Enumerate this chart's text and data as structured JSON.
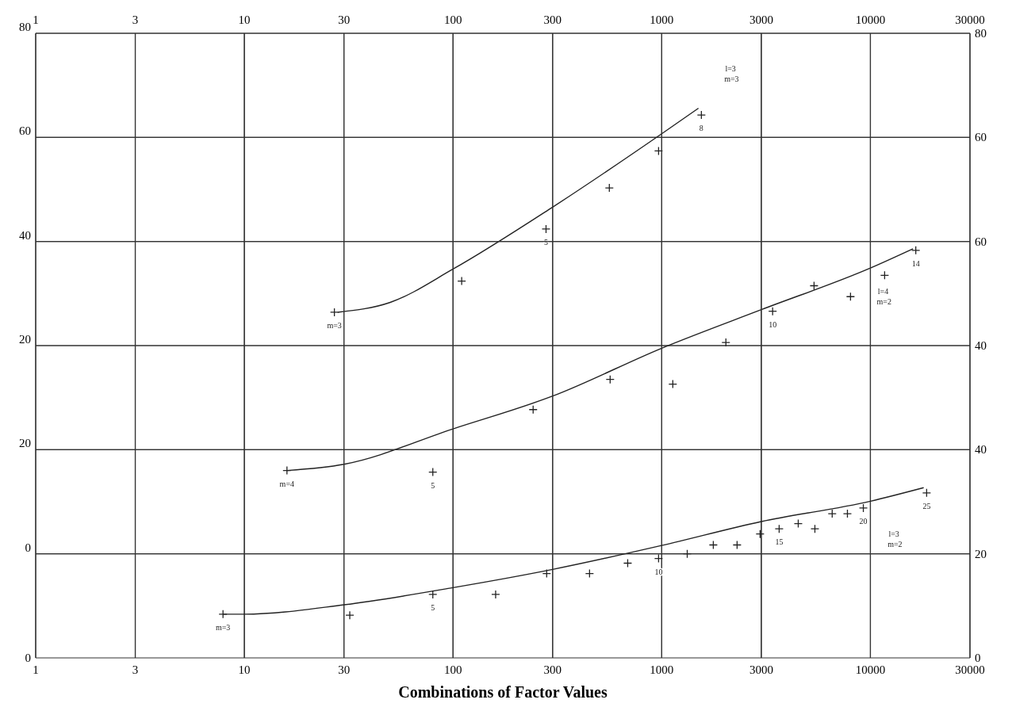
{
  "chart_data": [
    {
      "type": "scatter",
      "log": "x",
      "xlim": [
        1,
        30000
      ],
      "xticks": [
        1,
        3,
        10,
        30,
        100,
        300,
        1000,
        3000,
        10000,
        30000
      ],
      "ylim": [
        -40,
        80
      ],
      "yticks": [
        20,
        40,
        60,
        80
      ],
      "y2lim": [
        -40,
        80
      ],
      "y2ticks": [
        60,
        80
      ],
      "grid": true,
      "marker": "cross",
      "line_style": "solid",
      "series": [
        {
          "name": "l=3 m=3",
          "color": "#222222",
          "x": [
            27,
            110,
            279,
            561,
            966,
            1549
          ],
          "values": [
            26.4,
            32.4,
            42.4,
            50.3,
            57.4,
            64.3
          ]
        },
        {
          "type": "line",
          "color": "#222222",
          "marker": "none",
          "x": [
            28,
            50,
            100,
            300,
            1000,
            1500
          ],
          "values": [
            26.4,
            28.3,
            34.7,
            46.6,
            60.7,
            65.6
          ]
        }
      ],
      "annotations": [
        {
          "text": "m=3",
          "x": 27,
          "y": 26.4
        },
        {
          "text": "5",
          "x": 279,
          "y": 42.4
        },
        {
          "text": "8",
          "x": 1549,
          "y": 64.3
        }
      ]
    },
    {
      "type": "scatter",
      "log": "x",
      "xlim": [
        1,
        30000
      ],
      "ylim": [
        -20,
        100
      ],
      "yticks": [
        0,
        20
      ],
      "y2lim": [
        -20,
        100
      ],
      "y2ticks": [
        40,
        60
      ],
      "grid": true,
      "marker": "cross",
      "line_style": "solid",
      "tick_labels": "y",
      "series": [
        {
          "name": "l=4 m=2",
          "color": "#222222",
          "x": [
            16,
            80,
            242,
            566,
            1130,
            2030,
            3400,
            5370,
            8030,
            11700,
            16500
          ],
          "values": [
            16.0,
            15.7,
            27.7,
            33.5,
            32.6,
            40.6,
            46.6,
            51.5,
            49.4,
            53.5,
            58.3
          ]
        },
        {
          "type": "line",
          "color": "#222222",
          "marker": "none",
          "x": [
            16,
            30,
            100,
            300,
            1000,
            3000,
            10000,
            16000
          ],
          "values": [
            16.0,
            17.2,
            24,
            30.3,
            39.5,
            46.9,
            54.9,
            58.6
          ]
        }
      ],
      "annotations": [
        {
          "text": "m=4",
          "x": 16,
          "y": 16.0
        },
        {
          "text": "5",
          "x": 80,
          "y": 15.7
        },
        {
          "text": "10",
          "x": 3400,
          "y": 46.6
        },
        {
          "text": "14",
          "x": 16500,
          "y": 58.3
        }
      ]
    },
    {
      "type": "scatter",
      "log": "x",
      "xlim": [
        1,
        30000
      ],
      "xticks": [
        1,
        3,
        10,
        30,
        100,
        300,
        1000,
        3000,
        10000,
        30000
      ],
      "xlabel": "Combinations of Factor Values",
      "ylim": [
        0,
        120
      ],
      "yticks": [
        0,
        20,
        40
      ],
      "grid": true,
      "marker": "cross",
      "line_style": "solid",
      "series": [
        {
          "name": "l=3 m=2",
          "color": "#222222",
          "x": [
            7.9,
            32,
            80,
            160,
            281,
            451,
            687,
            966,
            1325,
            1767,
            2297,
            2960,
            3654,
            4510,
            5420,
            6560,
            7760,
            9250,
            18600
          ],
          "values": [
            8.4,
            8.2,
            12.2,
            12.2,
            16.2,
            16.2,
            18.2,
            19.1,
            20,
            21.7,
            21.7,
            23.8,
            24.8,
            25.8,
            24.8,
            27.7,
            27.7,
            28.8,
            31.7
          ]
        },
        {
          "type": "line",
          "color": "#222222",
          "marker": "none",
          "x": [
            7.9,
            10,
            30,
            100,
            300,
            1000,
            3000,
            10000,
            18000
          ],
          "values": [
            8.4,
            8.4,
            10.2,
            13.5,
            17,
            21.6,
            26.2,
            30.1,
            32.7
          ]
        }
      ],
      "annotations": [
        "0",
        {
          "text": "m=3",
          "x": 7.9,
          "y": 8.4
        },
        {
          "text": "5",
          "x": 80,
          "y": 12.2
        },
        {
          "text": "10",
          "x": 966,
          "y": 19.1
        },
        {
          "text": "15",
          "x": 3654,
          "y": 24.8
        },
        {
          "text": "20",
          "x": 9250,
          "y": 28.8
        },
        {
          "text": "25",
          "x": 18600,
          "y": 31.7
        }
      ]
    }
  ]
}
